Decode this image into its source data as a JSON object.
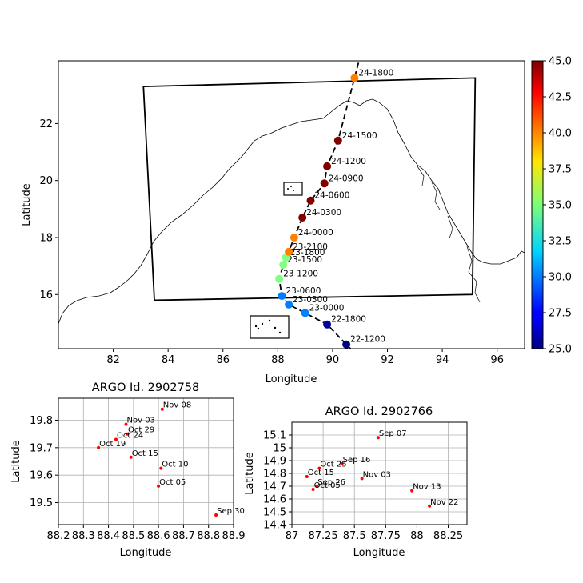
{
  "chart_data": [
    {
      "type": "scatter",
      "title": "",
      "xlabel": "Longitude",
      "ylabel": "Latitude",
      "xlim": [
        80,
        97
      ],
      "ylim": [
        14.1,
        24.2
      ],
      "xticks": [
        82,
        84,
        86,
        88,
        90,
        92,
        94,
        96
      ],
      "yticks": [
        16,
        18,
        20,
        22
      ],
      "colorbar": {
        "min": 25.0,
        "max": 45.0,
        "ticks": [
          "25.0",
          "27.5",
          "30.0",
          "32.5",
          "35.0",
          "37.5",
          "40.0",
          "42.5",
          "45.0"
        ],
        "colormap": "jet"
      },
      "track": [
        {
          "label": "22-1200",
          "x": 90.5,
          "y": 14.25,
          "value": 25.0
        },
        {
          "label": "22-1800",
          "x": 89.8,
          "y": 14.95,
          "value": 25.5
        },
        {
          "label": "23-0000",
          "x": 89.0,
          "y": 15.35,
          "value": 30.0
        },
        {
          "label": "23-0300",
          "x": 88.4,
          "y": 15.65,
          "value": 30.0
        },
        {
          "label": "23-0600",
          "x": 88.15,
          "y": 15.95,
          "value": 30.0
        },
        {
          "label": "23-1200",
          "x": 88.05,
          "y": 16.55,
          "value": 35.0
        },
        {
          "label": "23-1500",
          "x": 88.2,
          "y": 17.05,
          "value": 35.0
        },
        {
          "label": "23-1800",
          "x": 88.3,
          "y": 17.3,
          "value": 35.0
        },
        {
          "label": "23-2100",
          "x": 88.4,
          "y": 17.5,
          "value": 40.0
        },
        {
          "label": "24-0000",
          "x": 88.6,
          "y": 18.0,
          "value": 40.0
        },
        {
          "label": "24-0300",
          "x": 88.9,
          "y": 18.7,
          "value": 45.0
        },
        {
          "label": "24-0600",
          "x": 89.2,
          "y": 19.3,
          "value": 45.0
        },
        {
          "label": "24-0900",
          "x": 89.7,
          "y": 19.9,
          "value": 45.0
        },
        {
          "label": "24-1200",
          "x": 89.8,
          "y": 20.5,
          "value": 45.0
        },
        {
          "label": "24-1500",
          "x": 90.2,
          "y": 21.4,
          "value": 45.0
        },
        {
          "label": "24-1800",
          "x": 90.8,
          "y": 23.6,
          "value": 40.0
        }
      ],
      "domain_box": [
        [
          83.1,
          23.3
        ],
        [
          95.2,
          23.6
        ],
        [
          95.1,
          16.0
        ],
        [
          83.5,
          15.8
        ]
      ]
    },
    {
      "type": "scatter",
      "title": "ARGO Id. 2902758",
      "xlabel": "Longitude",
      "ylabel": "Latitude",
      "xlim": [
        88.2,
        88.9
      ],
      "ylim": [
        19.42,
        19.88
      ],
      "xtick_labels": [
        "88.2",
        "88.3",
        "88.4",
        "88.5",
        "88.6",
        "88.7",
        "88.8",
        "88.9"
      ],
      "ytick_labels": [
        "19.5",
        "19.6",
        "19.7",
        "19.8"
      ],
      "points": [
        {
          "label": "Nov 08",
          "x": 88.615,
          "y": 19.84
        },
        {
          "label": "Nov 03",
          "x": 88.47,
          "y": 19.785
        },
        {
          "label": "Oct 29",
          "x": 88.475,
          "y": 19.75
        },
        {
          "label": "Oct 24",
          "x": 88.43,
          "y": 19.73
        },
        {
          "label": "Oct 19",
          "x": 88.36,
          "y": 19.7
        },
        {
          "label": "Oct 15",
          "x": 88.49,
          "y": 19.665
        },
        {
          "label": "Oct 10",
          "x": 88.61,
          "y": 19.625
        },
        {
          "label": "Oct 05",
          "x": 88.6,
          "y": 19.56
        },
        {
          "label": "Sep 30",
          "x": 88.83,
          "y": 19.455
        }
      ]
    },
    {
      "type": "scatter",
      "title": "ARGO Id. 2902766",
      "xlabel": "Longitude",
      "ylabel": "Latitude",
      "xlim": [
        87.0,
        88.4
      ],
      "ylim": [
        14.4,
        15.2
      ],
      "xtick_labels": [
        "87",
        "87.25",
        "87.5",
        "87.75",
        "88",
        "88.25"
      ],
      "ytick_labels": [
        "14.4",
        "14.5",
        "14.6",
        "14.7",
        "14.8",
        "14.9",
        "15",
        "15.1"
      ],
      "points": [
        {
          "label": "Sep 07",
          "x": 87.69,
          "y": 15.08
        },
        {
          "label": "Sep 16",
          "x": 87.4,
          "y": 14.875
        },
        {
          "label": "Oct 25",
          "x": 87.22,
          "y": 14.84
        },
        {
          "label": "Oct 15",
          "x": 87.12,
          "y": 14.775
        },
        {
          "label": "Nov 03",
          "x": 87.56,
          "y": 14.76
        },
        {
          "label": "Sep 26",
          "x": 87.2,
          "y": 14.7
        },
        {
          "label": "Oct 05",
          "x": 87.17,
          "y": 14.675
        },
        {
          "label": "Nov 13",
          "x": 87.96,
          "y": 14.665
        },
        {
          "label": "Nov 22",
          "x": 88.1,
          "y": 14.545
        }
      ]
    }
  ]
}
